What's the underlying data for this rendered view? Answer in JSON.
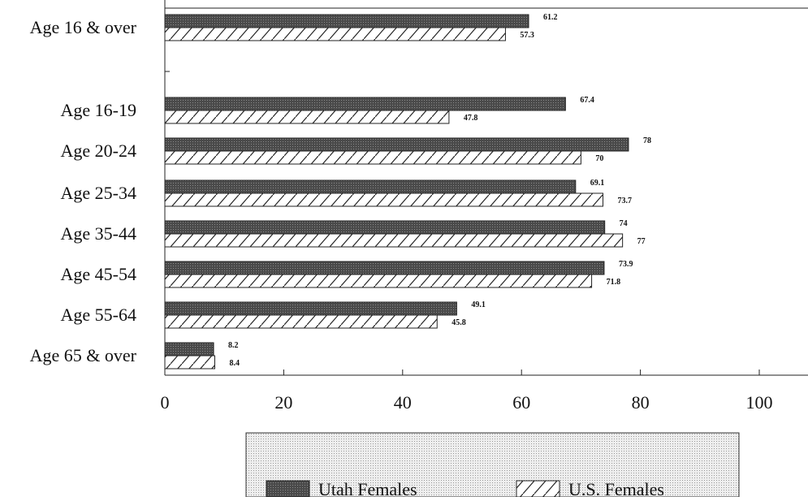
{
  "chart_data": {
    "type": "bar",
    "orientation": "horizontal",
    "categories": [
      "Age 16 & over",
      "Age 16-19",
      "Age 20-24",
      "Age 25-34",
      "Age 35-44",
      "Age 45-54",
      "Age 55-64",
      "Age 65 & over"
    ],
    "series": [
      {
        "name": "Utah Females",
        "values": [
          61.2,
          67.4,
          78,
          69.1,
          74,
          73.9,
          49.1,
          8.2
        ],
        "color": "#555555",
        "pattern": "dotted-fill"
      },
      {
        "name": "U.S. Females",
        "values": [
          57.3,
          47.8,
          70,
          73.7,
          77,
          71.8,
          45.8,
          8.4
        ],
        "color": "#ffffff",
        "pattern": "diagonal-hatch"
      }
    ],
    "x_ticks": [
      0,
      20,
      40,
      60,
      80,
      100
    ],
    "xlim": [
      0,
      110
    ],
    "title": "",
    "xlabel": "",
    "ylabel": "",
    "grid": false,
    "legend_position": "bottom"
  }
}
